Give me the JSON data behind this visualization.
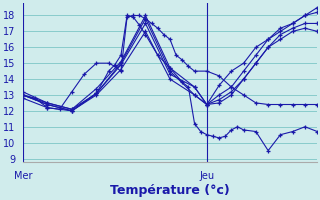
{
  "xlabel": "Température (°c)",
  "xlim": [
    0,
    48
  ],
  "ylim": [
    8.8,
    18.8
  ],
  "yticks": [
    9,
    10,
    11,
    12,
    13,
    14,
    15,
    16,
    17,
    18
  ],
  "background_color": "#d0ecec",
  "grid_color": "#88cccc",
  "line_color": "#1a1aaa",
  "mer_x": 0,
  "jeu_x": 30,
  "series": [
    {
      "x": [
        0,
        2,
        4,
        6,
        8,
        10,
        12,
        14,
        15,
        16,
        17,
        18,
        19,
        20,
        21,
        22,
        23,
        24,
        25,
        26,
        27,
        28,
        30,
        32,
        34,
        36,
        38,
        40,
        42,
        44,
        46,
        48
      ],
      "y": [
        13.0,
        12.8,
        12.2,
        12.1,
        13.2,
        14.3,
        15.0,
        15.0,
        14.8,
        14.5,
        17.9,
        18.0,
        18.0,
        17.8,
        17.5,
        17.2,
        16.8,
        16.5,
        15.5,
        15.2,
        14.8,
        14.5,
        14.5,
        14.2,
        13.5,
        13.0,
        12.5,
        12.4,
        12.4,
        12.4,
        12.4,
        12.4
      ]
    },
    {
      "x": [
        0,
        4,
        8,
        12,
        14,
        15,
        16,
        17,
        18,
        19,
        20,
        22,
        24,
        26,
        27,
        28,
        29,
        30,
        31,
        32,
        33,
        34,
        35,
        36,
        38,
        40,
        42,
        44,
        46,
        48
      ],
      "y": [
        13.0,
        12.5,
        12.1,
        13.1,
        14.5,
        14.9,
        15.5,
        18.0,
        17.9,
        17.4,
        16.8,
        15.5,
        14.7,
        13.8,
        13.5,
        11.2,
        10.7,
        10.5,
        10.4,
        10.3,
        10.4,
        10.8,
        11.0,
        10.8,
        10.7,
        9.5,
        10.5,
        10.7,
        11.0,
        10.7
      ]
    },
    {
      "x": [
        0,
        4,
        8,
        12,
        16,
        20,
        24,
        28,
        30,
        32,
        34,
        36,
        38,
        40,
        42,
        44,
        46,
        48
      ],
      "y": [
        13.2,
        12.5,
        12.1,
        13.4,
        15.1,
        18.0,
        14.7,
        13.5,
        12.4,
        13.6,
        14.5,
        15.0,
        16.0,
        16.5,
        17.0,
        17.5,
        18.0,
        18.5
      ]
    },
    {
      "x": [
        0,
        4,
        8,
        12,
        16,
        20,
        24,
        28,
        30,
        32,
        34,
        36,
        38,
        40,
        42,
        44,
        46,
        48
      ],
      "y": [
        13.0,
        12.4,
        12.0,
        13.1,
        15.0,
        17.8,
        14.5,
        13.0,
        12.4,
        12.7,
        13.2,
        14.0,
        15.0,
        16.0,
        16.8,
        17.2,
        17.5,
        17.5
      ]
    },
    {
      "x": [
        0,
        4,
        8,
        12,
        16,
        20,
        24,
        28,
        30,
        32,
        34,
        36,
        38,
        40,
        42,
        44,
        46,
        48
      ],
      "y": [
        13.0,
        12.4,
        12.0,
        13.1,
        14.9,
        17.5,
        14.3,
        13.5,
        12.4,
        13.0,
        13.5,
        14.5,
        15.5,
        16.5,
        17.2,
        17.5,
        18.0,
        18.2
      ]
    },
    {
      "x": [
        0,
        4,
        8,
        12,
        16,
        20,
        24,
        28,
        30,
        32,
        34,
        36,
        38,
        40,
        42,
        44,
        46,
        48
      ],
      "y": [
        12.8,
        12.2,
        12.0,
        13.0,
        14.6,
        17.0,
        14.0,
        13.0,
        12.4,
        12.5,
        13.0,
        14.0,
        15.0,
        16.0,
        16.5,
        17.0,
        17.2,
        17.0
      ]
    }
  ]
}
